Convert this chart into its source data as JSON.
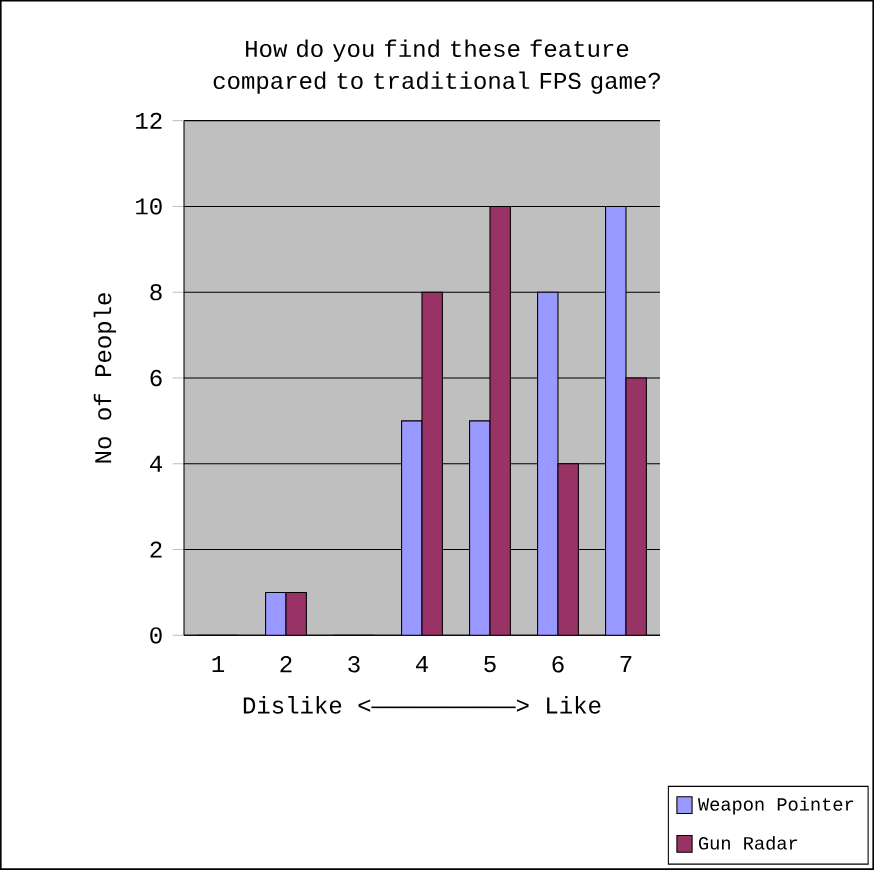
{
  "chart_data": {
    "type": "bar",
    "title": "How do you find these feature compared to traditional FPS game?",
    "xlabel": "Dislike <——————————> Like",
    "ylabel": "No of People",
    "categories": [
      "1",
      "2",
      "3",
      "4",
      "5",
      "6",
      "7"
    ],
    "series": [
      {
        "name": "Weapon Pointer",
        "color": "#9999ff",
        "values": [
          0,
          1,
          0,
          5,
          5,
          8,
          10
        ]
      },
      {
        "name": "Gun Radar",
        "color": "#993366",
        "values": [
          0,
          1,
          0,
          8,
          10,
          4,
          6
        ]
      }
    ],
    "ylim": [
      0,
      12
    ],
    "yticks": [
      0,
      2,
      4,
      6,
      8,
      10,
      12
    ],
    "grid": "y",
    "legend": "bottom right"
  }
}
